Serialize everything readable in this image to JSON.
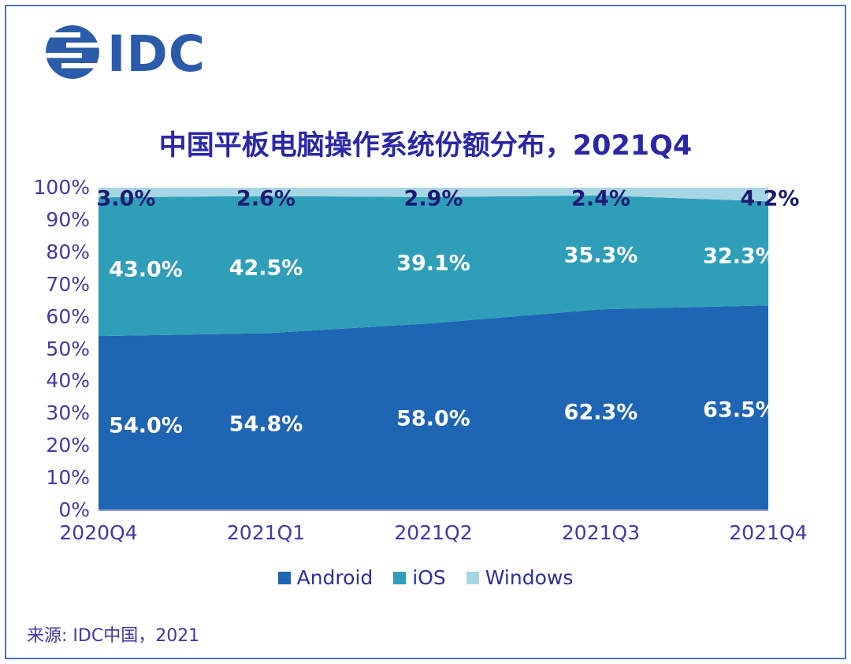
{
  "logo": {
    "text": "IDC"
  },
  "title": "中国平板电脑操作系统份额分布，2021Q4",
  "source": "来源: IDC中国，2021",
  "colors": {
    "android": "#1E65B3",
    "ios": "#2F9EB8",
    "windows": "#A6D5E3",
    "title_text": "#2B28A8",
    "data_label_dark": "#1B1B75",
    "axis_text": "#423AA8",
    "legend_text": "#2E2E9E",
    "idc_blue": "#2A5CAA",
    "frame_border": "#4B79B3"
  },
  "chart_data": {
    "type": "area",
    "stacked_percent": true,
    "title": "中国平板电脑操作系统份额分布，2021Q4",
    "categories": [
      "2020Q4",
      "2021Q1",
      "2021Q2",
      "2021Q3",
      "2021Q4"
    ],
    "series": [
      {
        "name": "Android",
        "values": [
          54.0,
          54.8,
          58.0,
          62.3,
          63.5
        ],
        "color_key": "android",
        "label_style": "light"
      },
      {
        "name": "iOS",
        "values": [
          43.0,
          42.5,
          39.1,
          35.3,
          32.3
        ],
        "color_key": "ios",
        "label_style": "light"
      },
      {
        "name": "Windows",
        "values": [
          3.0,
          2.6,
          2.9,
          2.4,
          4.2
        ],
        "color_key": "windows",
        "label_style": "dark"
      }
    ],
    "y_ticks": [
      "0%",
      "10%",
      "20%",
      "30%",
      "40%",
      "50%",
      "60%",
      "70%",
      "80%",
      "90%",
      "100%"
    ],
    "ylim": [
      0,
      100
    ],
    "grid": false,
    "legend_position": "bottom"
  }
}
